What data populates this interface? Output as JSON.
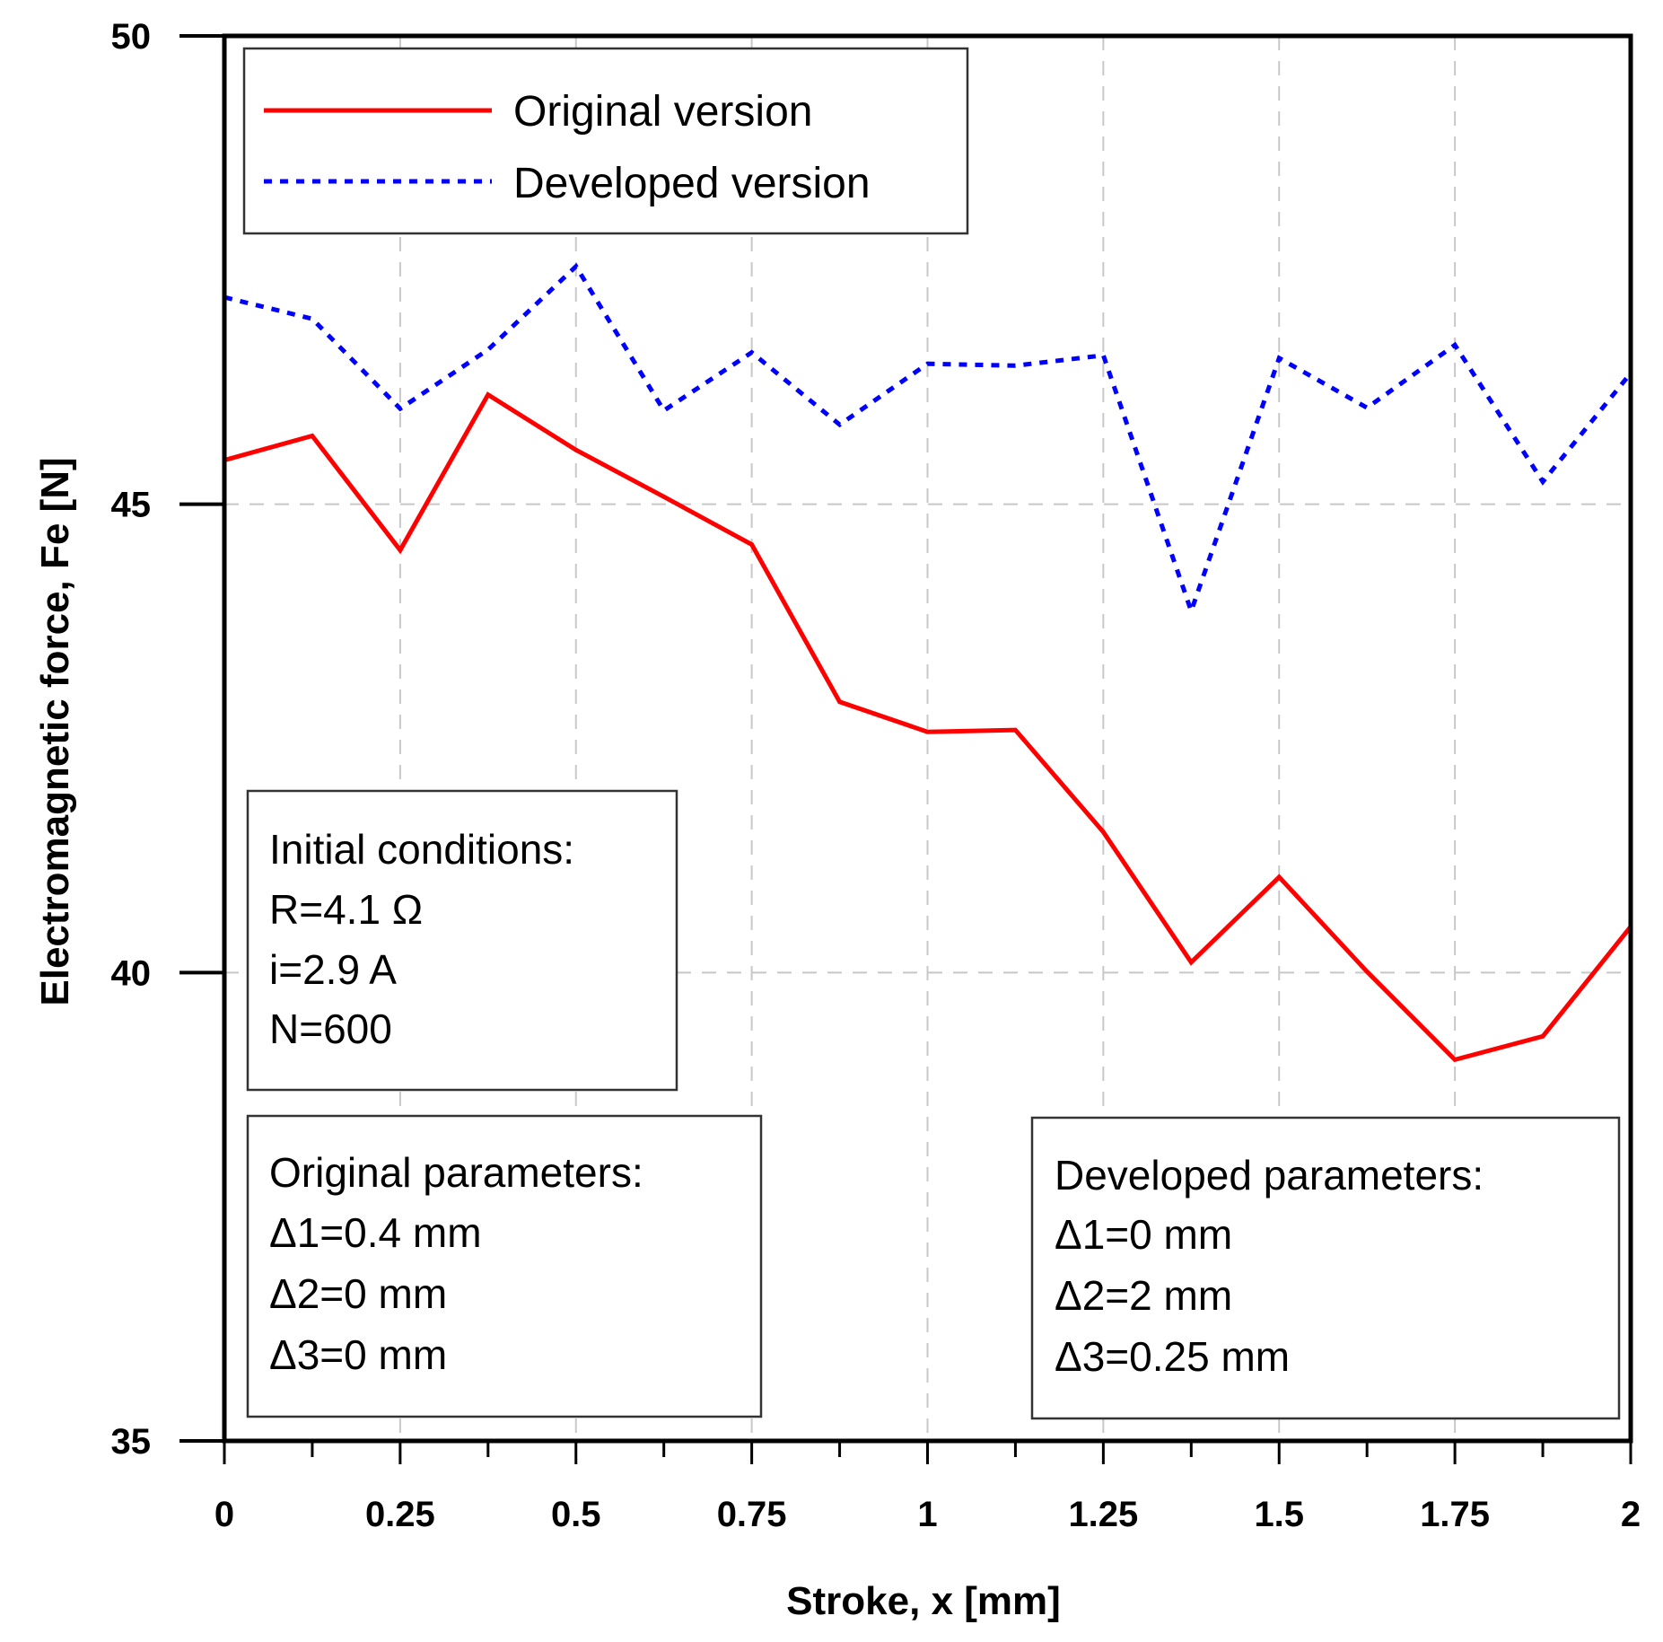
{
  "chart_data": {
    "type": "line",
    "xlabel": "Stroke, x [mm]",
    "ylabel": "Electromagnetic force, Fe [N]",
    "xlim": [
      0,
      2
    ],
    "ylim": [
      35,
      50
    ],
    "x_major_ticks": [
      0,
      0.25,
      0.5,
      0.75,
      1,
      1.25,
      1.5,
      1.75,
      2
    ],
    "x_tick_labels": [
      "0",
      "0.25",
      "0.5",
      "0.75",
      "1",
      "1.25",
      "1.5",
      "1.75",
      "2"
    ],
    "y_major_ticks": [
      35,
      40,
      45,
      50
    ],
    "y_tick_labels": [
      "35",
      "40",
      "45",
      "50"
    ],
    "grid": true,
    "legend_position": "top-left",
    "x": [
      0,
      0.125,
      0.25,
      0.375,
      0.5,
      0.625,
      0.75,
      0.875,
      1,
      1.125,
      1.25,
      1.375,
      1.5,
      1.625,
      1.75,
      1.875,
      2
    ],
    "series": [
      {
        "name": "Original version",
        "color": "#ff0000",
        "style": "solid",
        "values": [
          45.47,
          45.73,
          44.51,
          46.17,
          45.58,
          45.08,
          44.57,
          42.89,
          42.57,
          42.59,
          41.5,
          40.11,
          41.02,
          40.01,
          39.07,
          39.32,
          40.49
        ]
      },
      {
        "name": "Developed version",
        "color": "#0000ff",
        "style": "dotted",
        "values": [
          47.21,
          46.98,
          46.02,
          46.65,
          47.54,
          46.0,
          46.62,
          45.85,
          46.5,
          46.48,
          46.59,
          43.86,
          46.56,
          46.03,
          46.7,
          45.24,
          46.4
        ]
      }
    ],
    "annotations": {
      "initial_conditions": {
        "title": "Initial conditions:",
        "lines": [
          "R=4.1 Ω",
          "i=2.9 A",
          "N=600"
        ]
      },
      "original_parameters": {
        "title": "Original parameters:",
        "lines": [
          "Δ1=0.4 mm",
          "Δ2=0 mm",
          "Δ3=0 mm"
        ]
      },
      "developed_parameters": {
        "title": "Developed parameters:",
        "lines": [
          "Δ1=0 mm",
          "Δ2=2 mm",
          "Δ3=0.25 mm"
        ]
      }
    }
  }
}
